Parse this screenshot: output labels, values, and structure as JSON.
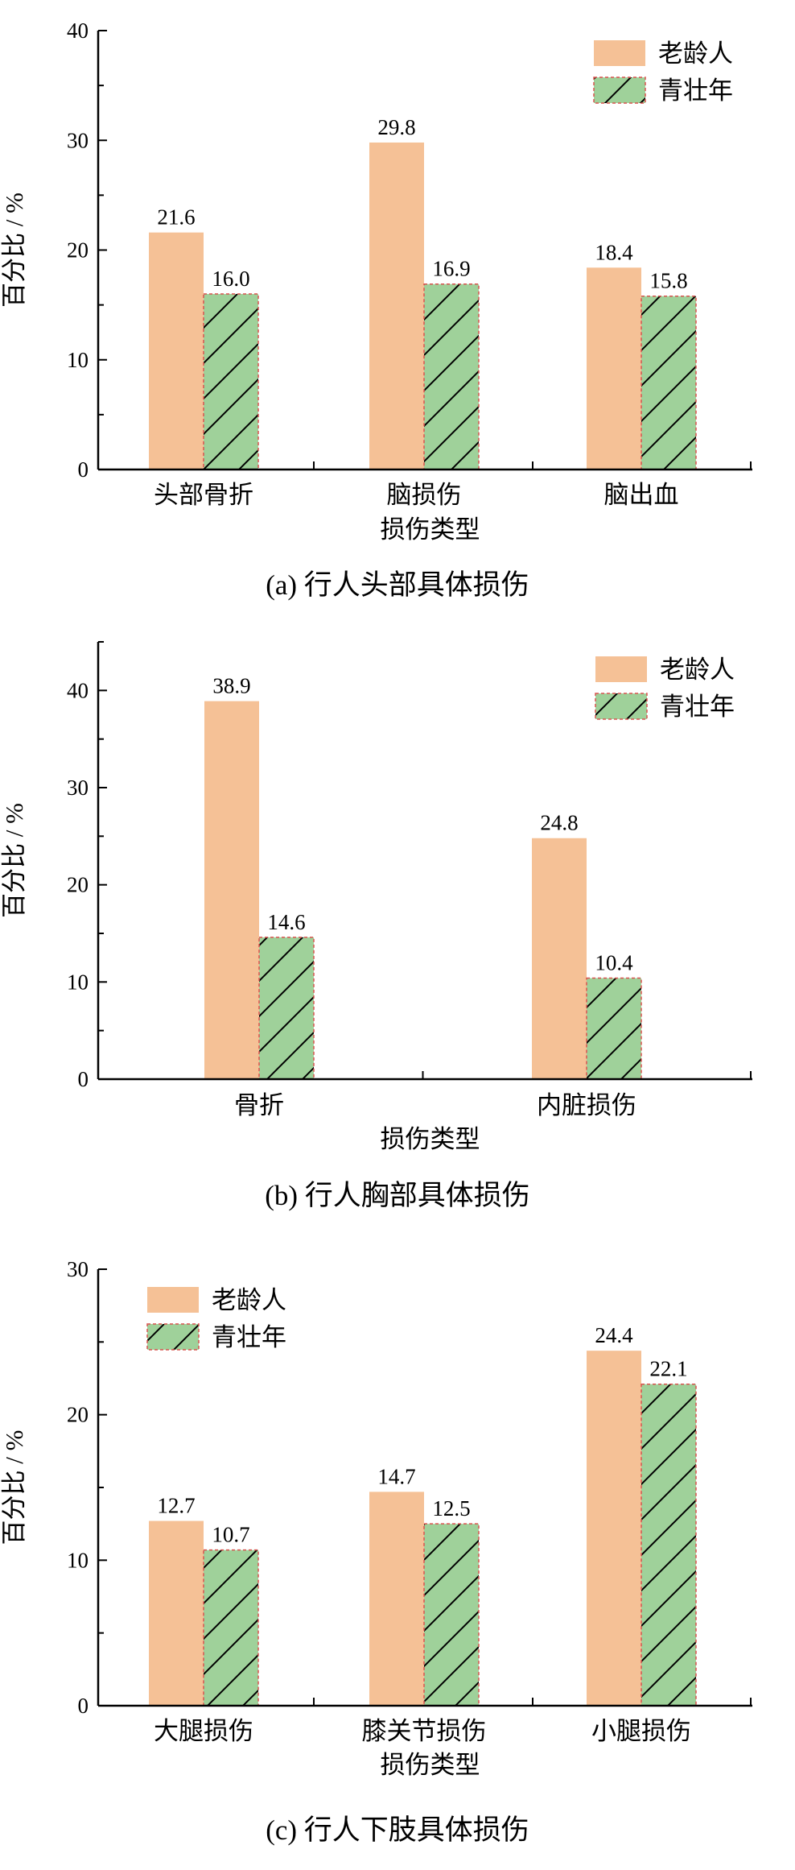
{
  "colors": {
    "elderly": "#f5c196",
    "young": "#9fd19a",
    "hatch": "#000000",
    "young_border": "#d9534f"
  },
  "chart_data": [
    {
      "type": "bar",
      "caption": "(a)  行人头部具体损伤",
      "xlabel": "损伤类型",
      "ylabel": "百分比 / %",
      "ylim": [
        0,
        40
      ],
      "yticks": [
        0,
        10,
        20,
        30,
        40
      ],
      "categories": [
        "头部骨折",
        "脑损伤",
        "脑出血"
      ],
      "series": [
        {
          "name": "老龄人",
          "values": [
            21.6,
            29.8,
            18.4
          ],
          "labels": [
            "21.6",
            "29.8",
            "18.4"
          ]
        },
        {
          "name": "青壮年",
          "values": [
            16.0,
            16.9,
            15.8
          ],
          "labels": [
            "16.0",
            "16.9",
            "15.8"
          ]
        }
      ],
      "legend": "top-right"
    },
    {
      "type": "bar",
      "caption": "(b)  行人胸部具体损伤",
      "xlabel": "损伤类型",
      "ylabel": "百分比 / %",
      "ylim": [
        0,
        45
      ],
      "yticks": [
        0,
        10,
        20,
        30,
        40
      ],
      "categories": [
        "骨折",
        "内脏损伤"
      ],
      "series": [
        {
          "name": "老龄人",
          "values": [
            38.9,
            24.8
          ],
          "labels": [
            "38.9",
            "24.8"
          ]
        },
        {
          "name": "青壮年",
          "values": [
            14.6,
            10.4
          ],
          "labels": [
            "14.6",
            "10.4"
          ]
        }
      ],
      "legend": "top-right"
    },
    {
      "type": "bar",
      "caption": "(c)  行人下肢具体损伤",
      "xlabel": "损伤类型",
      "ylabel": "百分比 / %",
      "ylim": [
        0,
        30
      ],
      "yticks": [
        0,
        10,
        20,
        30
      ],
      "categories": [
        "大腿损伤",
        "膝关节损伤",
        "小腿损伤"
      ],
      "series": [
        {
          "name": "老龄人",
          "values": [
            12.7,
            14.7,
            24.4
          ],
          "labels": [
            "12.7",
            "14.7",
            "24.4"
          ]
        },
        {
          "name": "青壮年",
          "values": [
            10.7,
            12.5,
            22.1
          ],
          "labels": [
            "10.7",
            "12.5",
            "22.1"
          ]
        }
      ],
      "legend": "top-left"
    }
  ]
}
